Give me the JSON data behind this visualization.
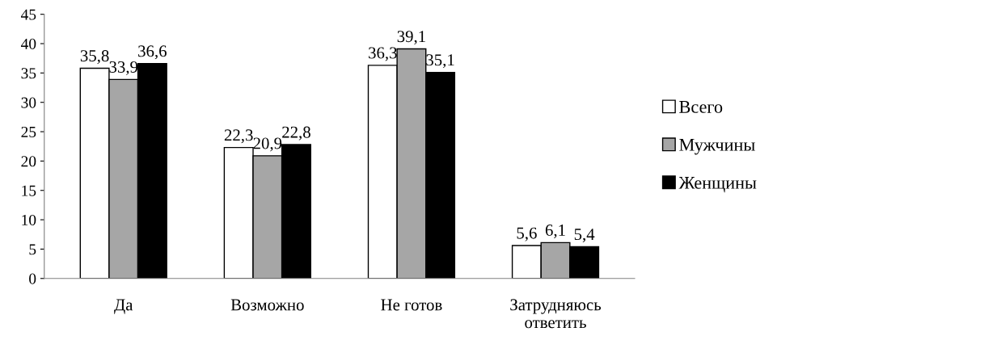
{
  "chart_data": {
    "type": "bar",
    "categories": [
      "Да",
      "Возможно",
      "Не готов",
      "Затрудняюсь\nответить"
    ],
    "series": [
      {
        "name": "Всего",
        "color": "#ffffff",
        "values": [
          35.8,
          22.3,
          36.3,
          5.6
        ],
        "value_labels": [
          "35,8",
          "22,3",
          "36,3",
          "5,6"
        ]
      },
      {
        "name": "Мужчины",
        "color": "#a6a6a6",
        "values": [
          33.9,
          20.9,
          39.1,
          6.1
        ],
        "value_labels": [
          "33,9",
          "20,9",
          "39,1",
          "6,1"
        ]
      },
      {
        "name": "Женщины",
        "color": "#000000",
        "values": [
          36.6,
          22.8,
          35.1,
          5.4
        ],
        "value_labels": [
          "36,6",
          "22,8",
          "35,1",
          "5,4"
        ]
      }
    ],
    "ylim": [
      0,
      45
    ],
    "yticks": [
      0,
      5,
      10,
      15,
      20,
      25,
      30,
      35,
      40,
      45
    ],
    "grid": false,
    "legend": "right"
  }
}
